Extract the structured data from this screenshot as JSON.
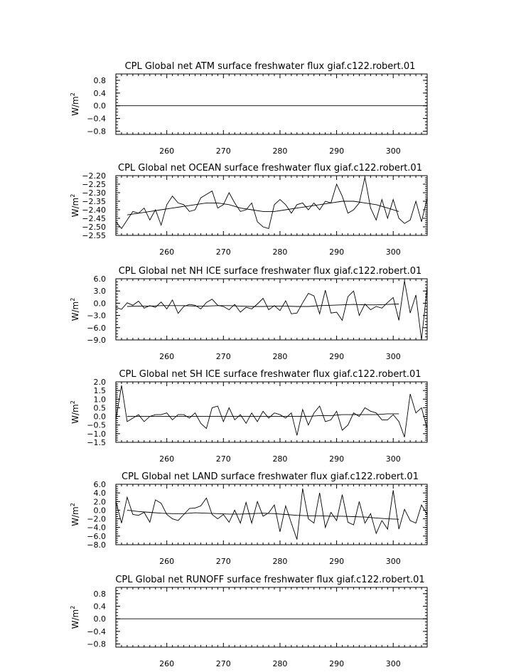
{
  "chart_data": [
    {
      "type": "line",
      "title": "CPL Global net ATM surface freshwater flux giaf.c122.robert.01",
      "ylabel": "W/m",
      "ylabel_sup": "2",
      "xlim": [
        251,
        306
      ],
      "ylim": [
        -0.9,
        1.0
      ],
      "x_ticks": [
        260,
        270,
        280,
        290,
        300
      ],
      "y_ticks": [
        0.8,
        0.4,
        0.0,
        -0.4,
        -0.8
      ],
      "y_tick_labels": [
        "0.8",
        "0.4",
        "0.0",
        "−0.4",
        "−0.8"
      ],
      "grid": false,
      "series": [
        {
          "x": [
            251,
            306
          ],
          "y": [
            0.0,
            0.0
          ]
        }
      ]
    },
    {
      "type": "line",
      "title": "CPL Global net OCEAN surface freshwater flux giaf.c122.robert.01",
      "ylabel": "W/m",
      "ylabel_sup": "2",
      "xlim": [
        251,
        306
      ],
      "ylim": [
        -2.55,
        -2.2
      ],
      "x_ticks": [
        260,
        270,
        280,
        290,
        300
      ],
      "y_ticks": [
        -2.2,
        -2.25,
        -2.3,
        -2.35,
        -2.4,
        -2.45,
        -2.5,
        -2.55
      ],
      "y_tick_labels": [
        "−2.20",
        "−2.25",
        "−2.30",
        "−2.35",
        "−2.40",
        "−2.45",
        "−2.50",
        "−2.55"
      ],
      "grid": false,
      "series": [
        {
          "x": [
            251,
            252,
            253,
            254,
            255,
            256,
            257,
            258,
            259,
            260,
            261,
            262,
            263,
            264,
            265,
            266,
            267,
            268,
            269,
            270,
            271,
            272,
            273,
            274,
            275,
            276,
            277,
            278,
            279,
            280,
            281,
            282,
            283,
            284,
            285,
            286,
            287,
            288,
            289,
            290,
            291,
            292,
            293,
            294,
            295,
            296,
            297,
            298,
            299,
            300,
            301,
            302,
            303,
            304,
            305,
            306
          ],
          "y": [
            -2.47,
            -2.51,
            -2.46,
            -2.41,
            -2.42,
            -2.39,
            -2.46,
            -2.4,
            -2.49,
            -2.37,
            -2.32,
            -2.36,
            -2.37,
            -2.41,
            -2.4,
            -2.33,
            -2.31,
            -2.29,
            -2.39,
            -2.37,
            -2.3,
            -2.36,
            -2.41,
            -2.4,
            -2.36,
            -2.47,
            -2.5,
            -2.51,
            -2.37,
            -2.34,
            -2.37,
            -2.42,
            -2.37,
            -2.36,
            -2.4,
            -2.36,
            -2.4,
            -2.35,
            -2.36,
            -2.25,
            -2.32,
            -2.42,
            -2.4,
            -2.36,
            -2.21,
            -2.39,
            -2.46,
            -2.34,
            -2.45,
            -2.34,
            -2.45,
            -2.48,
            -2.46,
            -2.35,
            -2.47,
            -2.33
          ]
        },
        {
          "x": [
            253,
            255,
            257,
            259,
            261,
            263,
            265,
            267,
            269,
            271,
            273,
            275,
            277,
            279,
            281,
            283,
            285,
            287,
            289,
            291,
            293,
            295,
            297,
            299,
            301
          ],
          "y": [
            -2.43,
            -2.42,
            -2.41,
            -2.4,
            -2.39,
            -2.38,
            -2.37,
            -2.36,
            -2.36,
            -2.37,
            -2.39,
            -2.4,
            -2.41,
            -2.41,
            -2.4,
            -2.39,
            -2.38,
            -2.37,
            -2.36,
            -2.35,
            -2.35,
            -2.36,
            -2.37,
            -2.39,
            -2.41
          ]
        }
      ]
    },
    {
      "type": "line",
      "title": "CPL Global net NH ICE surface freshwater flux giaf.c122.robert.01",
      "ylabel": "W/m",
      "ylabel_sup": "2",
      "xlim": [
        251,
        306
      ],
      "ylim": [
        -9.0,
        6.0
      ],
      "x_ticks": [
        260,
        270,
        280,
        290,
        300
      ],
      "y_ticks": [
        6.0,
        3.0,
        0.0,
        -3.0,
        -6.0,
        -9.0
      ],
      "y_tick_labels": [
        "6.0",
        "3.0",
        "0.0",
        "−3.0",
        "−6.0",
        "−9.0"
      ],
      "grid": false,
      "series": [
        {
          "x": [
            251,
            252,
            253,
            254,
            255,
            256,
            257,
            258,
            259,
            260,
            261,
            262,
            263,
            264,
            265,
            266,
            267,
            268,
            269,
            270,
            271,
            272,
            273,
            274,
            275,
            276,
            277,
            278,
            279,
            280,
            281,
            282,
            283,
            284,
            285,
            286,
            287,
            288,
            289,
            290,
            291,
            292,
            293,
            294,
            295,
            296,
            297,
            298,
            299,
            300,
            301,
            302,
            303,
            304,
            305,
            306
          ],
          "y": [
            -1.0,
            -1.5,
            0.1,
            -0.5,
            0.5,
            -1.2,
            -0.6,
            -1.0,
            0.3,
            -1.4,
            0.8,
            -2.5,
            -0.8,
            -0.3,
            -0.5,
            -1.4,
            0.2,
            1.0,
            -0.5,
            -0.8,
            -1.6,
            -0.3,
            -2.2,
            -1.0,
            -1.4,
            -0.2,
            1.2,
            -1.6,
            -0.6,
            -1.8,
            0.6,
            -2.6,
            -2.4,
            0.1,
            2.4,
            1.8,
            -2.6,
            3.2,
            -2.4,
            -2.2,
            -4.2,
            1.6,
            3.0,
            -3.0,
            -0.2,
            -1.6,
            -0.8,
            -1.2,
            0.2,
            1.4,
            -4.2,
            5.5,
            -2.4,
            2.0,
            -9.0,
            4.0
          ]
        },
        {
          "x": [
            253,
            255,
            257,
            259,
            261,
            263,
            265,
            267,
            269,
            271,
            273,
            275,
            277,
            279,
            281,
            283,
            285,
            287,
            289,
            291,
            293,
            295,
            297,
            299,
            301
          ],
          "y": [
            -0.8,
            -0.7,
            -0.7,
            -0.6,
            -0.6,
            -0.6,
            -0.7,
            -0.7,
            -0.6,
            -0.6,
            -0.7,
            -0.8,
            -0.8,
            -0.7,
            -0.7,
            -0.8,
            -0.8,
            -0.6,
            -0.5,
            -0.4,
            -0.3,
            -0.4,
            -0.4,
            -0.3,
            -0.2
          ]
        }
      ]
    },
    {
      "type": "line",
      "title": "CPL Global net SH ICE surface freshwater flux giaf.c122.robert.01",
      "ylabel": "W/m",
      "ylabel_sup": "2",
      "xlim": [
        251,
        306
      ],
      "ylim": [
        -1.5,
        2.0
      ],
      "x_ticks": [
        260,
        270,
        280,
        290,
        300
      ],
      "y_ticks": [
        2.0,
        1.5,
        1.0,
        0.5,
        0.0,
        -0.5,
        -1.0,
        -1.5
      ],
      "y_tick_labels": [
        "2.0",
        "1.5",
        "1.0",
        "0.5",
        "0.0",
        "−0.5",
        "−1.0",
        "−1.5"
      ],
      "grid": false,
      "series": [
        {
          "x": [
            251,
            252,
            253,
            254,
            255,
            256,
            257,
            258,
            259,
            260,
            261,
            262,
            263,
            264,
            265,
            266,
            267,
            268,
            269,
            270,
            271,
            272,
            273,
            274,
            275,
            276,
            277,
            278,
            279,
            280,
            281,
            282,
            283,
            284,
            285,
            286,
            287,
            288,
            289,
            290,
            291,
            292,
            293,
            294,
            295,
            296,
            297,
            298,
            299,
            300,
            301,
            302,
            303,
            304,
            305,
            306
          ],
          "y": [
            -0.2,
            1.8,
            -0.3,
            -0.1,
            0.1,
            -0.3,
            0.0,
            0.1,
            0.1,
            0.2,
            -0.2,
            0.1,
            0.1,
            -0.1,
            0.2,
            -0.4,
            -0.7,
            0.5,
            0.6,
            -0.3,
            0.5,
            -0.2,
            0.1,
            -0.4,
            0.2,
            -0.3,
            0.3,
            -0.1,
            0.2,
            0.1,
            -0.1,
            0.2,
            -1.1,
            0.4,
            -0.5,
            0.2,
            0.6,
            -0.3,
            -0.2,
            0.3,
            -0.8,
            -0.5,
            0.2,
            0.0,
            0.5,
            0.3,
            0.2,
            -0.2,
            -0.2,
            0.1,
            -0.3,
            -1.2,
            1.3,
            0.2,
            0.5,
            -0.7
          ]
        },
        {
          "x": [
            253,
            255,
            257,
            259,
            261,
            263,
            265,
            267,
            269,
            271,
            273,
            275,
            277,
            279,
            281,
            283,
            285,
            287,
            289,
            291,
            293,
            295,
            297,
            299,
            301
          ],
          "y": [
            0.0,
            0.0,
            0.0,
            0.0,
            0.0,
            0.0,
            0.0,
            0.0,
            0.0,
            0.0,
            0.0,
            0.0,
            0.0,
            0.0,
            0.0,
            0.0,
            0.0,
            0.05,
            0.05,
            0.1,
            0.1,
            0.1,
            0.1,
            0.15,
            0.15
          ]
        }
      ]
    },
    {
      "type": "line",
      "title": "CPL Global net LAND surface freshwater flux giaf.c122.robert.01",
      "ylabel": "W/m",
      "ylabel_sup": "2",
      "xlim": [
        251,
        306
      ],
      "ylim": [
        -8.0,
        6.0
      ],
      "x_ticks": [
        260,
        270,
        280,
        290,
        300
      ],
      "y_ticks": [
        6.0,
        4.0,
        2.0,
        0.0,
        -2.0,
        -4.0,
        -6.0,
        -8.0
      ],
      "y_tick_labels": [
        "6.0",
        "4.0",
        "2.0",
        "0.0",
        "−2.0",
        "−4.0",
        "−6.0",
        "−8.0"
      ],
      "grid": false,
      "series": [
        {
          "x": [
            251,
            252,
            253,
            254,
            255,
            256,
            257,
            258,
            259,
            260,
            261,
            262,
            263,
            264,
            265,
            266,
            267,
            268,
            269,
            270,
            271,
            272,
            273,
            274,
            275,
            276,
            277,
            278,
            279,
            280,
            281,
            282,
            283,
            284,
            285,
            286,
            287,
            288,
            289,
            290,
            291,
            292,
            293,
            294,
            295,
            296,
            297,
            298,
            299,
            300,
            301,
            302,
            303,
            304,
            305,
            306
          ],
          "y": [
            2.0,
            -3.0,
            3.0,
            -1.0,
            -1.2,
            -0.5,
            -2.8,
            2.4,
            1.6,
            -1.0,
            -2.0,
            -2.4,
            -1.0,
            0.4,
            0.5,
            1.0,
            2.8,
            -1.0,
            -2.0,
            -1.0,
            -2.8,
            0.0,
            -3.0,
            1.8,
            -3.0,
            2.0,
            -1.4,
            -0.6,
            1.2,
            -5.0,
            1.0,
            -3.0,
            -6.8,
            5.0,
            -2.0,
            -3.0,
            4.0,
            -4.0,
            -0.5,
            -2.4,
            3.6,
            -2.8,
            -3.4,
            2.0,
            -3.0,
            -0.8,
            -5.4,
            -2.4,
            -4.4,
            4.6,
            -4.4,
            0.2,
            -2.4,
            -3.0,
            1.2,
            -1.0
          ]
        },
        {
          "x": [
            253,
            255,
            257,
            259,
            261,
            263,
            265,
            267,
            269,
            271,
            273,
            275,
            277,
            279,
            281,
            283,
            285,
            287,
            289,
            291,
            293,
            295,
            297,
            299,
            301
          ],
          "y": [
            0.0,
            -0.3,
            -0.5,
            -0.7,
            -0.8,
            -0.8,
            -0.6,
            -0.7,
            -0.8,
            -0.9,
            -0.9,
            -0.8,
            -0.7,
            -0.8,
            -1.0,
            -1.2,
            -1.3,
            -1.3,
            -1.4,
            -1.4,
            -1.5,
            -1.6,
            -1.8,
            -2.0,
            -2.1
          ]
        }
      ]
    },
    {
      "type": "line",
      "title": "CPL Global net RUNOFF surface freshwater flux giaf.c122.robert.01",
      "ylabel": "W/m",
      "ylabel_sup": "2",
      "xlim": [
        251,
        306
      ],
      "ylim": [
        -0.9,
        1.0
      ],
      "x_ticks": [
        260,
        270,
        280,
        290,
        300
      ],
      "y_ticks": [
        0.8,
        0.4,
        0.0,
        -0.4,
        -0.8
      ],
      "y_tick_labels": [
        "0.8",
        "0.4",
        "0.0",
        "−0.4",
        "−0.8"
      ],
      "grid": false,
      "series": [
        {
          "x": [
            251,
            306
          ],
          "y": [
            0.0,
            0.0
          ]
        }
      ]
    }
  ]
}
